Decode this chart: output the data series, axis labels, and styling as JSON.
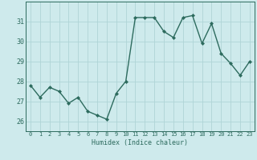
{
  "x": [
    0,
    1,
    2,
    3,
    4,
    5,
    6,
    7,
    8,
    9,
    10,
    11,
    12,
    13,
    14,
    15,
    16,
    17,
    18,
    19,
    20,
    21,
    22,
    23
  ],
  "y": [
    27.8,
    27.2,
    27.7,
    27.5,
    26.9,
    27.2,
    26.5,
    26.3,
    26.1,
    27.4,
    28.0,
    31.2,
    31.2,
    31.2,
    30.5,
    30.2,
    31.2,
    31.3,
    29.9,
    30.9,
    29.4,
    28.9,
    28.3,
    29.0
  ],
  "xlabel": "Humidex (Indice chaleur)",
  "ylim": [
    25.5,
    32.0
  ],
  "xlim": [
    -0.5,
    23.5
  ],
  "yticks": [
    26,
    27,
    28,
    29,
    30,
    31
  ],
  "xticks": [
    0,
    1,
    2,
    3,
    4,
    5,
    6,
    7,
    8,
    9,
    10,
    11,
    12,
    13,
    14,
    15,
    16,
    17,
    18,
    19,
    20,
    21,
    22,
    23
  ],
  "line_color": "#2d6b5e",
  "bg_color": "#ceeaec",
  "grid_color": "#b0d4d6",
  "marker": "D",
  "marker_size": 2.0,
  "line_width": 1.0
}
